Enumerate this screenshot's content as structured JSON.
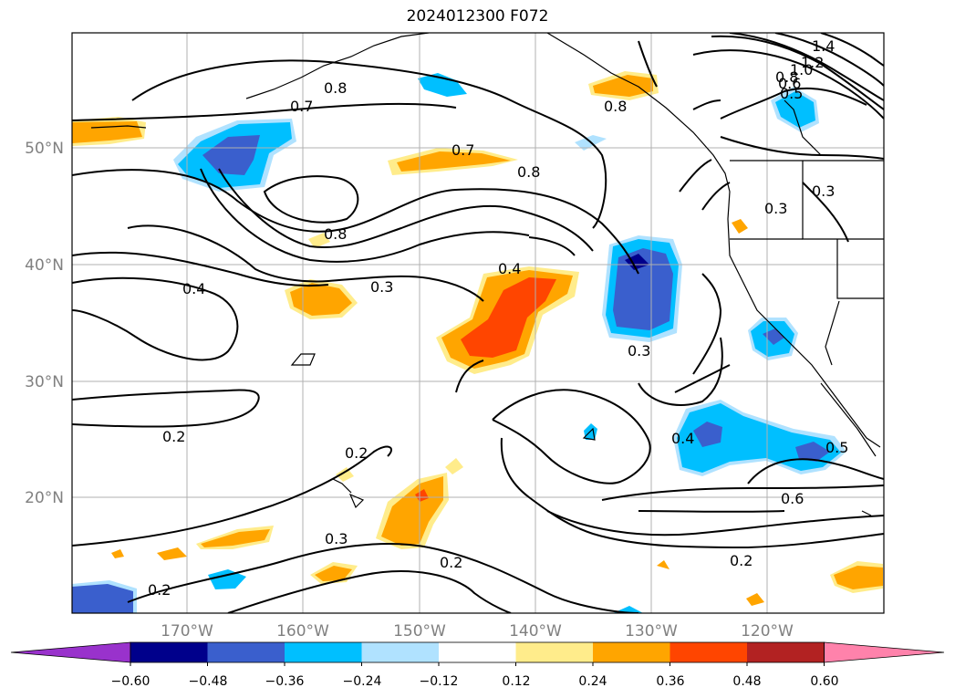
{
  "title": "2024012300 F072",
  "lat_ticks": [
    "50°N",
    "40°N",
    "30°N",
    "20°N"
  ],
  "lon_ticks": [
    "170°W",
    "160°W",
    "150°W",
    "140°W",
    "130°W",
    "120°W"
  ],
  "contour_labels": [
    "1.4",
    "1.2",
    "1.0",
    "0.8",
    "0.6",
    "0.5",
    "0.8",
    "0.7",
    "0.8",
    "0.7",
    "0.8",
    "0.8",
    "0.4",
    "0.3",
    "0.4",
    "0.3",
    "0.3",
    "0.2",
    "0.2",
    "0.4",
    "0.5",
    "0.6",
    "0.3",
    "0.2",
    "0.2",
    "0.2",
    "0.3"
  ],
  "colorbar": {
    "colors": [
      "#9932CC",
      "#00008B",
      "#3A5FCD",
      "#00BFFF",
      "#B0E2FF",
      "#FFFFFF",
      "#FFEC8B",
      "#FFA500",
      "#FF4500",
      "#B22222",
      "#FF82AB"
    ],
    "ticks": [
      "−0.60",
      "−0.48",
      "−0.36",
      "−0.24",
      "−0.12",
      "0.12",
      "0.24",
      "0.36",
      "0.48",
      "0.60"
    ]
  }
}
